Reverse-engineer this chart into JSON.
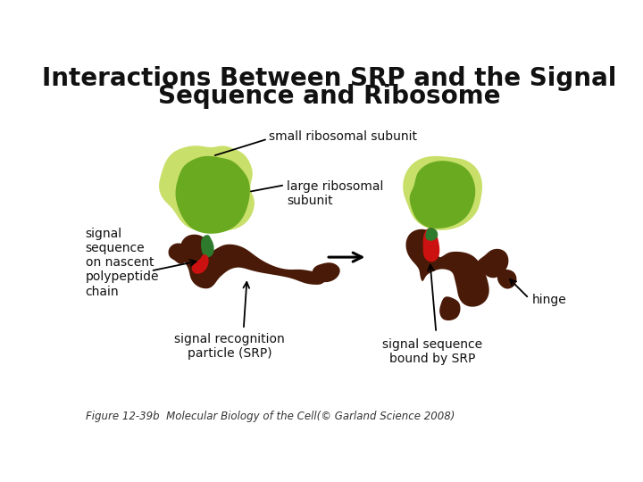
{
  "title_line1": "Interactions Between SRP and the Signal",
  "title_line2": "Sequence and Ribosome",
  "title_fontsize": 20,
  "title_fontweight": "bold",
  "bg_color": "#ffffff",
  "caption": "Figure 12-39b  Molecular Biology of the Cell(© Garland Science 2008)",
  "caption_fontsize": 8.5,
  "label_fontsize": 10,
  "colors": {
    "small_subunit": "#c8e06a",
    "large_subunit": "#6aaa20",
    "srp_body": "#4a1a08",
    "signal_green": "#2d7a2d",
    "signal_red": "#cc1111",
    "arrow": "#111111",
    "text": "#111111"
  }
}
